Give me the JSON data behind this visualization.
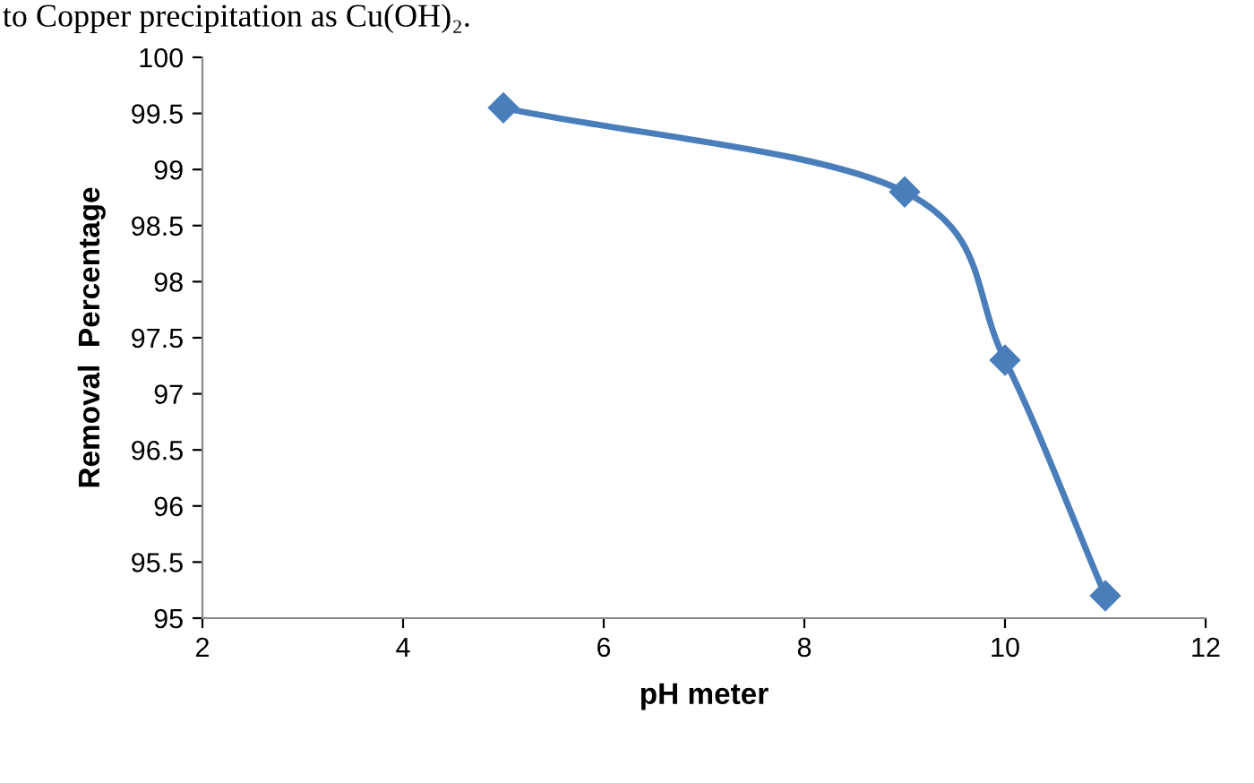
{
  "chart_data": {
    "type": "line",
    "x": [
      5,
      9,
      10,
      11
    ],
    "series": [
      {
        "color": "#4a7ebb",
        "values": [
          99.55,
          98.8,
          97.3,
          95.2
        ]
      }
    ],
    "xlabel": "pH meter",
    "ylabel": "Removal  Percentage",
    "xlim": [
      2,
      12
    ],
    "xticks": [
      2,
      4,
      6,
      8,
      10,
      12
    ],
    "ylim": [
      95,
      100
    ],
    "yticks": [
      95,
      {
        "value": 95.5,
        "label": "95.5"
      },
      96,
      {
        "value": 96.5,
        "label": "96.5"
      },
      97,
      {
        "value": 97.5,
        "label": "97.5"
      },
      98,
      {
        "value": 98.5,
        "label": "98.5"
      },
      99,
      {
        "value": 99.5,
        "label": "99.5"
      },
      100
    ],
    "grid": false,
    "legend": false,
    "marker": "diamond",
    "line_style": "solid",
    "annotations": [
      "to Copper precipitation as Cu(OH)₂."
    ]
  }
}
